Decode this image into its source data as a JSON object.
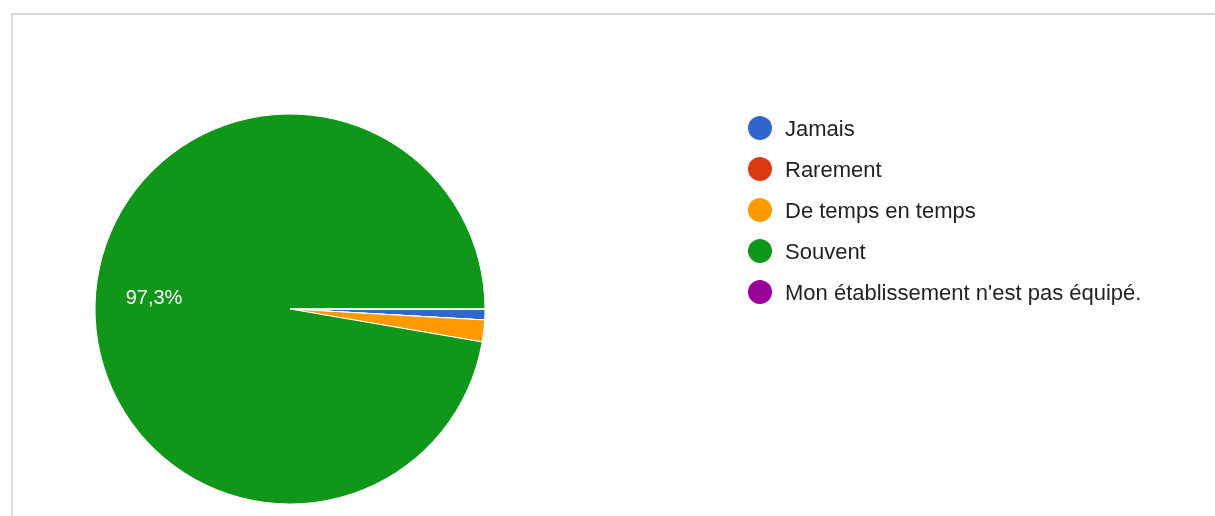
{
  "chart_data": {
    "type": "pie",
    "categories": [
      "Jamais",
      "Rarement",
      "De temps en temps",
      "Souvent",
      "Mon établissement n'est pas équipé."
    ],
    "values": [
      0.9,
      0,
      1.8,
      97.3,
      0
    ],
    "colors": [
      "#3366cc",
      "#dc3912",
      "#ff9900",
      "#109618",
      "#990099"
    ],
    "value_labels": [
      null,
      null,
      null,
      "97,3%",
      null
    ],
    "legend": "right"
  }
}
